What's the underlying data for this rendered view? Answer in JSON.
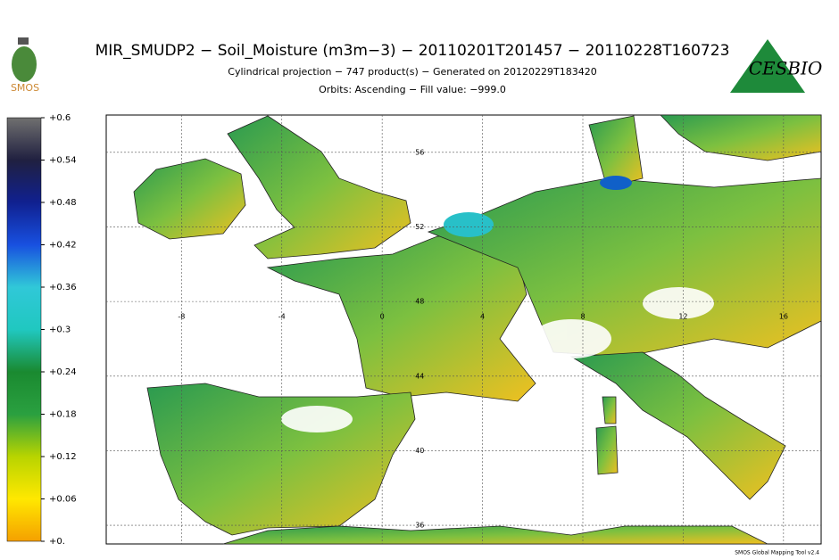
{
  "header": {
    "title": "MIR_SMUDP2 − Soil_Moisture (m3m−3) − 20110201T201457 − 20110228T160723",
    "subtitle": "Cylindrical projection − 747 product(s) − Generated on 20120229T183420",
    "subtitle2": "Orbits: Ascending − Fill value: −999.0"
  },
  "logos": {
    "left": "SMOS",
    "right": "CESBIO"
  },
  "colorbar": {
    "lim": [
      0,
      0.6
    ],
    "colors": [
      "#f5a000",
      "#ffe800",
      "#b8d400",
      "#2aa040",
      "#1a8a30",
      "#20c8c0",
      "#30c8d8",
      "#1850e0",
      "#102090",
      "#202040",
      "#707070"
    ],
    "ticks": [
      {
        "value": 0.6,
        "label": "+0.6"
      },
      {
        "value": 0.54,
        "label": "+0.54"
      },
      {
        "value": 0.48,
        "label": "+0.48"
      },
      {
        "value": 0.42,
        "label": "+0.42"
      },
      {
        "value": 0.36,
        "label": "+0.36"
      },
      {
        "value": 0.3,
        "label": "+0.3"
      },
      {
        "value": 0.24,
        "label": "+0.24"
      },
      {
        "value": 0.18,
        "label": "+0.18"
      },
      {
        "value": 0.12,
        "label": "+0.12"
      },
      {
        "value": 0.06,
        "label": "+0.06"
      },
      {
        "value": 0,
        "label": "+0."
      }
    ]
  },
  "map": {
    "xlim": [
      -11,
      17.5
    ],
    "ylim": [
      35,
      58
    ],
    "xticks": [
      -8,
      -4,
      0,
      4,
      8,
      12,
      16
    ],
    "yticks": [
      56,
      52,
      48,
      44,
      40,
      36
    ],
    "grid": true
  },
  "footer": "SMOS Global Mapping Tool v2.4"
}
